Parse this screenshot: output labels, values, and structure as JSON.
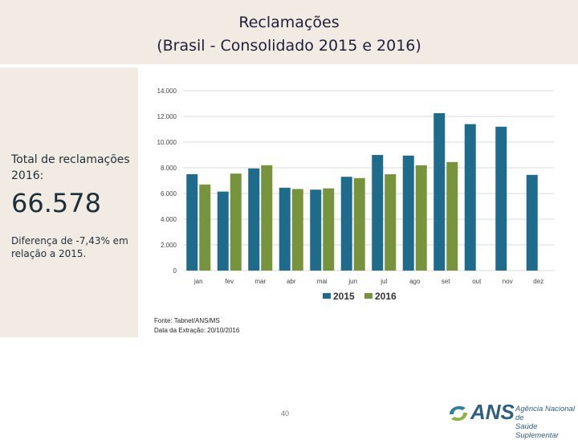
{
  "header": {
    "title_line1": "Reclamações",
    "title_line2": "(Brasil - Consolidado 2015 e 2016)"
  },
  "sidebar": {
    "total_label": "Total de reclamações 2016:",
    "total_value": "66.578",
    "diff_note": "Diferença de -7,43% em relação a 2015."
  },
  "source": {
    "line1": "Fonte: Tabnet/ANS/MS",
    "line2": "Data da Extração: 20/10/2016"
  },
  "footer": {
    "page_number": "40",
    "logo_text": "ANS",
    "logo_sub_line1": "Agência Nacional de",
    "logo_sub_line2": "Saúde Suplementar"
  },
  "chart_data": {
    "type": "bar",
    "title": "",
    "xlabel": "",
    "ylabel": "",
    "categories": [
      "jan",
      "fev",
      "mar",
      "abr",
      "mai",
      "jun",
      "jul",
      "ago",
      "set",
      "out",
      "nov",
      "dez"
    ],
    "series": [
      {
        "name": "2015",
        "color": "#1f6b8c",
        "values": [
          7500,
          6150,
          7950,
          6450,
          6300,
          7300,
          9000,
          8950,
          12250,
          11400,
          11200,
          7450
        ]
      },
      {
        "name": "2016",
        "color": "#77933c",
        "values": [
          6700,
          7550,
          8200,
          6350,
          6400,
          7200,
          7500,
          8200,
          8450,
          null,
          null,
          null
        ]
      }
    ],
    "ylim": [
      0,
      14000
    ],
    "yticks": [
      0,
      2000,
      4000,
      6000,
      8000,
      10000,
      12000,
      14000
    ],
    "ytick_labels": [
      "0",
      "2.000",
      "4.000",
      "6.000",
      "8.000",
      "10.000",
      "12.000",
      "14.000"
    ],
    "grid": true,
    "legend_position": "bottom"
  }
}
